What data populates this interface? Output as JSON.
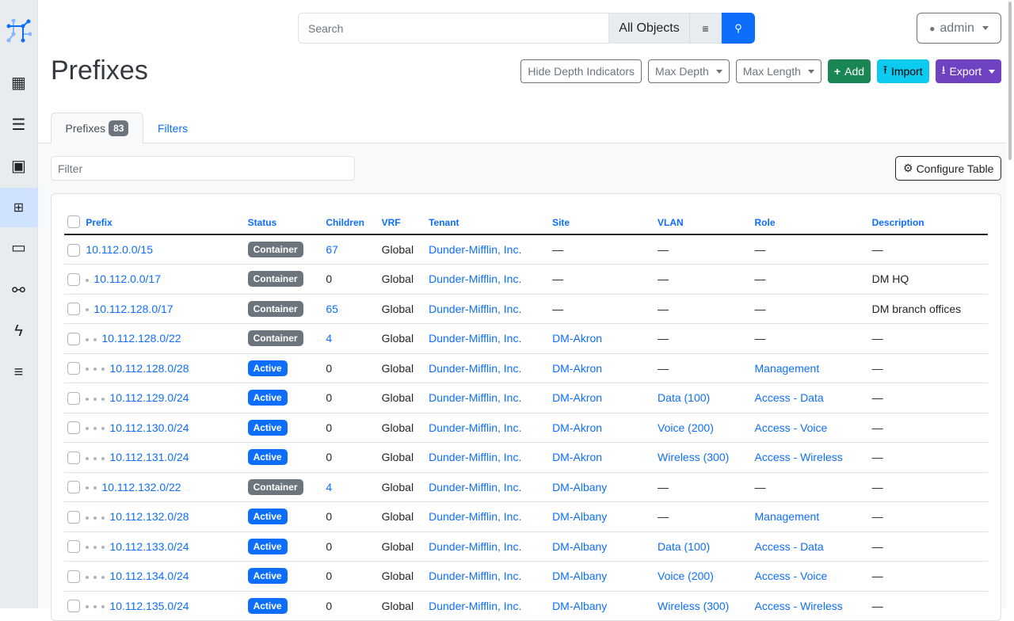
{
  "sidebar": {
    "items": [
      {
        "icon": "building-icon"
      },
      {
        "icon": "server-icon"
      },
      {
        "icon": "ethernet-port-icon"
      },
      {
        "icon": "ipam-icon",
        "active": true
      },
      {
        "icon": "monitor-icon"
      },
      {
        "icon": "circuit-icon"
      },
      {
        "icon": "power-icon"
      },
      {
        "icon": "menu-lines-icon"
      }
    ]
  },
  "search": {
    "placeholder": "Search",
    "scope": "All Objects"
  },
  "user": {
    "name": "admin"
  },
  "page": {
    "title": "Prefixes"
  },
  "actions": {
    "hide_depth": "Hide Depth Indicators",
    "max_depth": "Max Depth",
    "max_length": "Max Length",
    "add": "Add",
    "import": "Import",
    "export": "Export"
  },
  "colors": {
    "primary": "#0d6efd",
    "add": "#198754",
    "import": "#0dcaf0",
    "export": "#6f42c1",
    "container": "#6c757d",
    "active": "#0d6efd"
  },
  "tabs": {
    "prefixes": "Prefixes",
    "count": "83",
    "filters": "Filters"
  },
  "filter": {
    "placeholder": "Filter"
  },
  "configure": "Configure Table",
  "table": {
    "columns": [
      "Prefix",
      "Status",
      "Children",
      "VRF",
      "Tenant",
      "Site",
      "VLAN",
      "Role",
      "Description"
    ],
    "rows": [
      {
        "depth": 0,
        "prefix": "10.112.0.0/15",
        "status": "Container",
        "children": "67",
        "vrf": "Global",
        "tenant": "Dunder-Mifflin, Inc.",
        "site": "—",
        "vlan": "—",
        "role": "—",
        "description": "—"
      },
      {
        "depth": 1,
        "prefix": "10.112.0.0/17",
        "status": "Container",
        "children": "0",
        "vrf": "Global",
        "tenant": "Dunder-Mifflin, Inc.",
        "site": "—",
        "vlan": "—",
        "role": "—",
        "description": "DM HQ"
      },
      {
        "depth": 1,
        "prefix": "10.112.128.0/17",
        "status": "Container",
        "children": "65",
        "vrf": "Global",
        "tenant": "Dunder-Mifflin, Inc.",
        "site": "—",
        "vlan": "—",
        "role": "—",
        "description": "DM branch offices"
      },
      {
        "depth": 2,
        "prefix": "10.112.128.0/22",
        "status": "Container",
        "children": "4",
        "vrf": "Global",
        "tenant": "Dunder-Mifflin, Inc.",
        "site": "DM-Akron",
        "vlan": "—",
        "role": "—",
        "description": "—"
      },
      {
        "depth": 3,
        "prefix": "10.112.128.0/28",
        "status": "Active",
        "children": "0",
        "vrf": "Global",
        "tenant": "Dunder-Mifflin, Inc.",
        "site": "DM-Akron",
        "vlan": "—",
        "role": "Management",
        "description": "—"
      },
      {
        "depth": 3,
        "prefix": "10.112.129.0/24",
        "status": "Active",
        "children": "0",
        "vrf": "Global",
        "tenant": "Dunder-Mifflin, Inc.",
        "site": "DM-Akron",
        "vlan": "Data (100)",
        "role": "Access - Data",
        "description": "—"
      },
      {
        "depth": 3,
        "prefix": "10.112.130.0/24",
        "status": "Active",
        "children": "0",
        "vrf": "Global",
        "tenant": "Dunder-Mifflin, Inc.",
        "site": "DM-Akron",
        "vlan": "Voice (200)",
        "role": "Access - Voice",
        "description": "—"
      },
      {
        "depth": 3,
        "prefix": "10.112.131.0/24",
        "status": "Active",
        "children": "0",
        "vrf": "Global",
        "tenant": "Dunder-Mifflin, Inc.",
        "site": "DM-Akron",
        "vlan": "Wireless (300)",
        "role": "Access - Wireless",
        "description": "—"
      },
      {
        "depth": 2,
        "prefix": "10.112.132.0/22",
        "status": "Container",
        "children": "4",
        "vrf": "Global",
        "tenant": "Dunder-Mifflin, Inc.",
        "site": "DM-Albany",
        "vlan": "—",
        "role": "—",
        "description": "—"
      },
      {
        "depth": 3,
        "prefix": "10.112.132.0/28",
        "status": "Active",
        "children": "0",
        "vrf": "Global",
        "tenant": "Dunder-Mifflin, Inc.",
        "site": "DM-Albany",
        "vlan": "—",
        "role": "Management",
        "description": "—"
      },
      {
        "depth": 3,
        "prefix": "10.112.133.0/24",
        "status": "Active",
        "children": "0",
        "vrf": "Global",
        "tenant": "Dunder-Mifflin, Inc.",
        "site": "DM-Albany",
        "vlan": "Data (100)",
        "role": "Access - Data",
        "description": "—"
      },
      {
        "depth": 3,
        "prefix": "10.112.134.0/24",
        "status": "Active",
        "children": "0",
        "vrf": "Global",
        "tenant": "Dunder-Mifflin, Inc.",
        "site": "DM-Albany",
        "vlan": "Voice (200)",
        "role": "Access - Voice",
        "description": "—"
      },
      {
        "depth": 3,
        "prefix": "10.112.135.0/24",
        "status": "Active",
        "children": "0",
        "vrf": "Global",
        "tenant": "Dunder-Mifflin, Inc.",
        "site": "DM-Albany",
        "vlan": "Wireless (300)",
        "role": "Access - Wireless",
        "description": "—"
      }
    ]
  }
}
